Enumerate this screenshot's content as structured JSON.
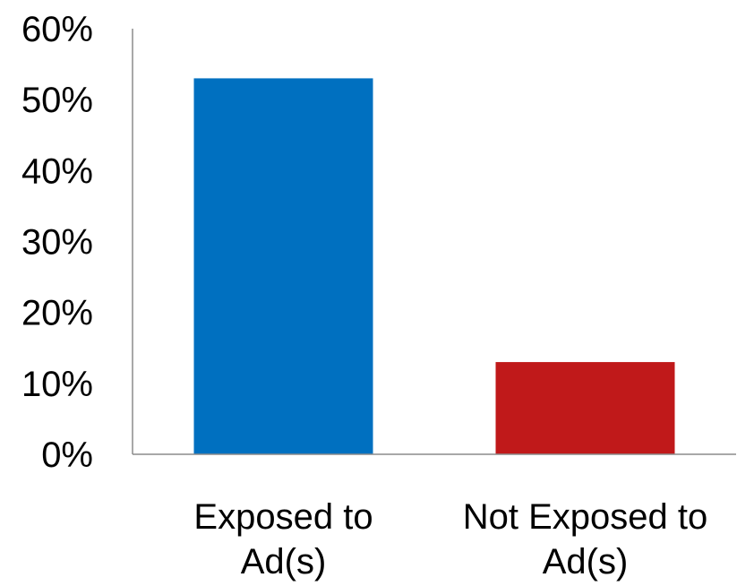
{
  "chart_data": {
    "type": "bar",
    "categories": [
      [
        "Exposed to",
        "Ad(s)"
      ],
      [
        "Not Exposed to",
        "Ad(s)"
      ]
    ],
    "values": [
      0.53,
      0.13
    ],
    "colors": [
      "#0070C0",
      "#C0191A"
    ],
    "ylim": [
      0,
      0.6
    ],
    "yticks": [
      "0%",
      "10%",
      "20%",
      "30%",
      "40%",
      "50%",
      "60%"
    ],
    "grid": false,
    "legend": "none",
    "title": "",
    "xlabel": "",
    "ylabel": ""
  }
}
